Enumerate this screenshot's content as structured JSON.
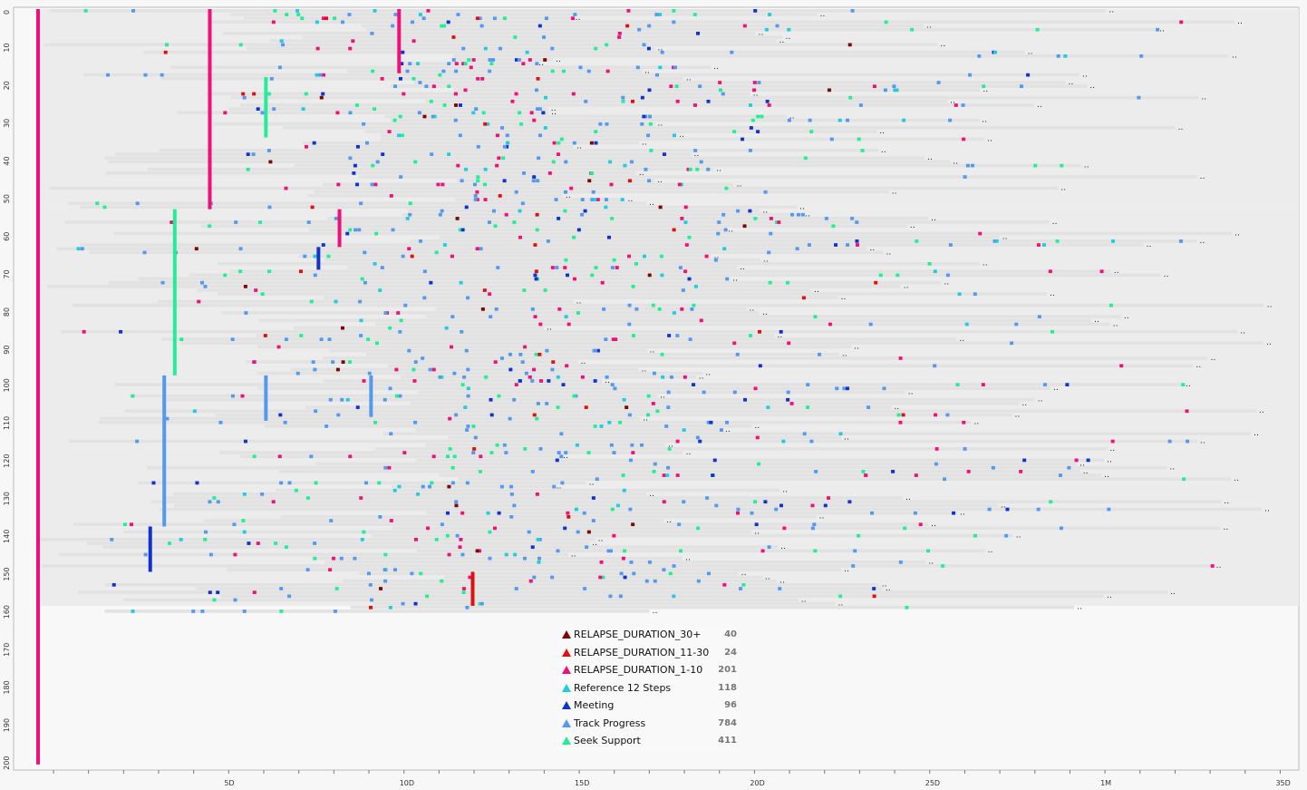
{
  "chart_data": {
    "type": "scatter",
    "title": "",
    "xlabel": "",
    "ylabel": "",
    "x_unit": "days",
    "xlim": [
      0,
      36.5
    ],
    "ylim": [
      0,
      201
    ],
    "x_ticks": [
      {
        "value": 5,
        "label": "5D"
      },
      {
        "value": 10,
        "label": "10D"
      },
      {
        "value": 15,
        "label": "15D"
      },
      {
        "value": 20,
        "label": "20D"
      },
      {
        "value": 25,
        "label": "25D"
      },
      {
        "value": 30,
        "label": "1M"
      },
      {
        "value": 35,
        "label": "35D"
      }
    ],
    "y_ticks": [
      0,
      10,
      20,
      30,
      40,
      50,
      60,
      70,
      80,
      90,
      100,
      110,
      120,
      130,
      140,
      150,
      160,
      170,
      180,
      190,
      200
    ],
    "grid": false,
    "legend_position": "bottom-center",
    "series": [
      {
        "name": "RELAPSE_DURATION_30+",
        "count": 40,
        "color": "#7a0a0a"
      },
      {
        "name": "RELAPSE_DURATION_11-30",
        "count": 24,
        "color": "#dd1111"
      },
      {
        "name": "RELAPSE_DURATION_1-10",
        "count": 201,
        "color": "#ee1177"
      },
      {
        "name": "Reference 12 Steps",
        "count": 118,
        "color": "#22ccdd"
      },
      {
        "name": "Meeting",
        "count": 96,
        "color": "#1133cc"
      },
      {
        "name": "Track Progress",
        "count": 784,
        "color": "#5599ee"
      },
      {
        "name": "Seek Support",
        "count": 411,
        "color": "#22ee99"
      }
    ]
  }
}
